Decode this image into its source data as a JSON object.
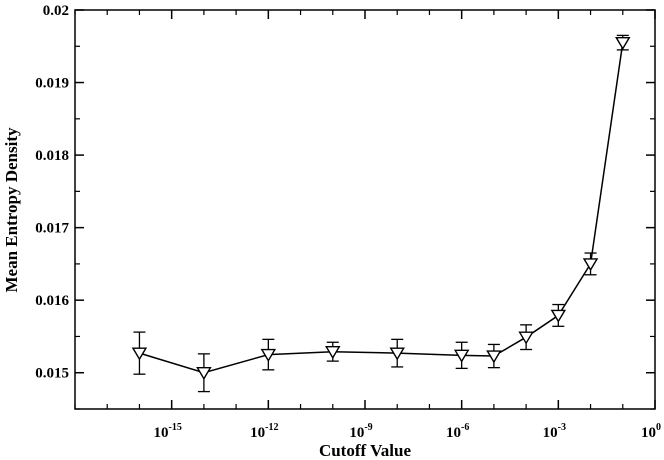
{
  "chart_data": {
    "type": "scatter",
    "title": "",
    "xlabel": "Cutoff Value",
    "ylabel": "Mean Entropy Density",
    "x_scale": "log10",
    "xlim": [
      1e-18,
      1
    ],
    "ylim": [
      0.0145,
      0.02
    ],
    "grid": false,
    "legend": "none",
    "x_ticks": [
      {
        "exp": -15,
        "base": "10",
        "sup": "-15"
      },
      {
        "exp": -12,
        "base": "10",
        "sup": "-12"
      },
      {
        "exp": -9,
        "base": "10",
        "sup": "-9"
      },
      {
        "exp": -6,
        "base": "10",
        "sup": "-6"
      },
      {
        "exp": -3,
        "base": "10",
        "sup": "-3"
      },
      {
        "exp": 0,
        "base": "10",
        "sup": "0"
      }
    ],
    "y_ticks": [
      "0.015",
      "0.016",
      "0.017",
      "0.018",
      "0.019",
      "0.02"
    ],
    "series": [
      {
        "marker": "triangle-down",
        "points": [
          {
            "x": 1e-16,
            "y": 0.01527,
            "err": 0.00029
          },
          {
            "x": 1e-14,
            "y": 0.015,
            "err": 0.00026
          },
          {
            "x": 1e-12,
            "y": 0.01525,
            "err": 0.00021
          },
          {
            "x": 1e-10,
            "y": 0.01529,
            "err": 0.00013
          },
          {
            "x": 1e-08,
            "y": 0.01527,
            "err": 0.00019
          },
          {
            "x": 1e-06,
            "y": 0.01524,
            "err": 0.00018
          },
          {
            "x": 1e-05,
            "y": 0.01523,
            "err": 0.00016
          },
          {
            "x": 0.0001,
            "y": 0.01549,
            "err": 0.00017
          },
          {
            "x": 0.001,
            "y": 0.01579,
            "err": 0.00015
          },
          {
            "x": 0.01,
            "y": 0.0165,
            "err": 0.00015
          },
          {
            "x": 0.1,
            "y": 0.01955,
            "err": 0.0001
          }
        ]
      }
    ]
  }
}
